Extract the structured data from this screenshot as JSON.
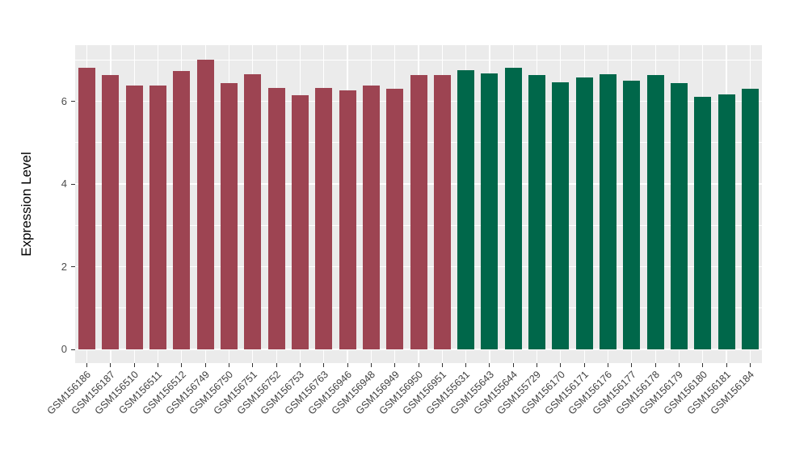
{
  "chart_data": {
    "type": "bar",
    "title": "",
    "xlabel": "",
    "ylabel": "Expression Level",
    "yticks": [
      0,
      2,
      4,
      6
    ],
    "yminor": [
      1,
      3,
      5,
      7
    ],
    "ylim": [
      -0.33,
      7.36
    ],
    "grid": true,
    "legend_position": "none",
    "panel_background": "#EBEBEB",
    "gridline_color": "#FFFFFF",
    "tick_color": "#333333",
    "categories": [
      "GSM156186",
      "GSM156187",
      "GSM156510",
      "GSM156511",
      "GSM156512",
      "GSM156749",
      "GSM156750",
      "GSM156751",
      "GSM156752",
      "GSM156753",
      "GSM156763",
      "GSM156946",
      "GSM156948",
      "GSM156949",
      "GSM156950",
      "GSM156951",
      "GSM155631",
      "GSM155643",
      "GSM155644",
      "GSM155729",
      "GSM156170",
      "GSM156171",
      "GSM156176",
      "GSM156177",
      "GSM156178",
      "GSM156179",
      "GSM156180",
      "GSM156181",
      "GSM156184"
    ],
    "values": [
      6.82,
      6.63,
      6.39,
      6.39,
      6.73,
      7.0,
      6.45,
      6.66,
      6.33,
      6.15,
      6.33,
      6.27,
      6.39,
      6.31,
      6.63,
      6.63,
      6.76,
      6.68,
      6.82,
      6.63,
      6.46,
      6.58,
      6.66,
      6.51,
      6.63,
      6.45,
      6.11,
      6.17,
      6.3
    ],
    "groups": [
      "group1",
      "group1",
      "group1",
      "group1",
      "group1",
      "group1",
      "group1",
      "group1",
      "group1",
      "group1",
      "group1",
      "group1",
      "group1",
      "group1",
      "group1",
      "group1",
      "group2",
      "group2",
      "group2",
      "group2",
      "group2",
      "group2",
      "group2",
      "group2",
      "group2",
      "group2",
      "group2",
      "group2",
      "group2"
    ],
    "group_colors": {
      "group1": "#9D4452",
      "group2": "#00674A"
    }
  }
}
